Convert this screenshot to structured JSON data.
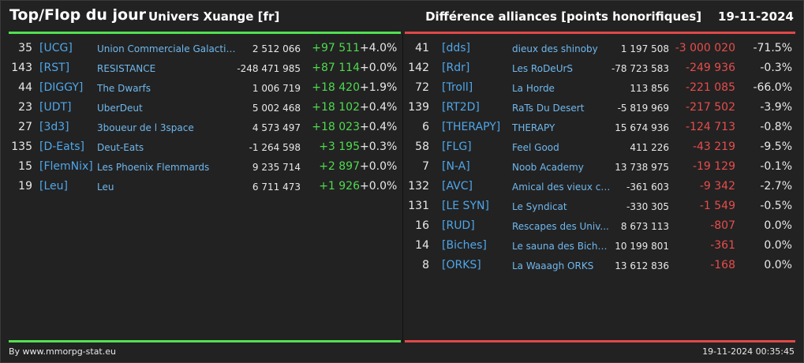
{
  "header": {
    "title": "Top/Flop du jour",
    "subtitle": "Univers Xuange [fr]",
    "right_title": "Différence alliances [points honorifiques]",
    "date": "19-11-2024"
  },
  "colors": {
    "positive": "#4edb4e",
    "negative": "#e84c4c",
    "link": "#4fa7ea"
  },
  "top": [
    {
      "rank": "35",
      "tag": "[UCG]",
      "name": "Union Commerciale Galactique",
      "points": "2 512 066",
      "diff": "+97 511",
      "pct": "+4.0%"
    },
    {
      "rank": "143",
      "tag": "[RST]",
      "name": "RESISTANCE",
      "points": "-248 471 985",
      "diff": "+87 114",
      "pct": "+0.0%"
    },
    {
      "rank": "44",
      "tag": "[DIGGY]",
      "name": "The Dwarfs",
      "points": "1 006 719",
      "diff": "+18 420",
      "pct": "+1.9%"
    },
    {
      "rank": "23",
      "tag": "[UDT]",
      "name": "UberDeut",
      "points": "5 002 468",
      "diff": "+18 102",
      "pct": "+0.4%"
    },
    {
      "rank": "27",
      "tag": "[3d3]",
      "name": "3boueur de l 3space",
      "points": "4 573 497",
      "diff": "+18 023",
      "pct": "+0.4%"
    },
    {
      "rank": "135",
      "tag": "[D-Eats]",
      "name": "Deut-Eats",
      "points": "-1 264 598",
      "diff": "+3 195",
      "pct": "+0.3%"
    },
    {
      "rank": "15",
      "tag": "[FlemNix]",
      "name": "Les Phoenix Flemmards",
      "points": "9 235 714",
      "diff": "+2 897",
      "pct": "+0.0%"
    },
    {
      "rank": "19",
      "tag": "[Leu]",
      "name": "Leu",
      "points": "6 711 473",
      "diff": "+1 926",
      "pct": "+0.0%"
    }
  ],
  "flop": [
    {
      "rank": "41",
      "tag": "[dds]",
      "name": "dieux des shinoby",
      "points": "1 197 508",
      "diff": "-3 000 020",
      "pct": "-71.5%"
    },
    {
      "rank": "142",
      "tag": "[Rdr]",
      "name": "Les RoDeUrS",
      "points": "-78 723 583",
      "diff": "-249 936",
      "pct": "-0.3%"
    },
    {
      "rank": "72",
      "tag": "[Troll]",
      "name": "La Horde",
      "points": "113 856",
      "diff": "-221 085",
      "pct": "-66.0%"
    },
    {
      "rank": "139",
      "tag": "[RT2D]",
      "name": "RaTs Du Desert",
      "points": "-5 819 969",
      "diff": "-217 502",
      "pct": "-3.9%"
    },
    {
      "rank": "6",
      "tag": "[THERAPY]",
      "name": "THERAPY",
      "points": "15 674 936",
      "diff": "-124 713",
      "pct": "-0.8%"
    },
    {
      "rank": "58",
      "tag": "[FLG]",
      "name": "Feel Good",
      "points": "411 226",
      "diff": "-43 219",
      "pct": "-9.5%"
    },
    {
      "rank": "7",
      "tag": "[N-A]",
      "name": "Noob Academy",
      "points": "13 738 975",
      "diff": "-19 129",
      "pct": "-0.1%"
    },
    {
      "rank": "132",
      "tag": "[AVC]",
      "name": "Amical des vieux co...",
      "points": "-361 603",
      "diff": "-9 342",
      "pct": "-2.7%"
    },
    {
      "rank": "131",
      "tag": "[LE SYN]",
      "name": "Le Syndicat",
      "points": "-330 305",
      "diff": "-1 549",
      "pct": "-0.5%"
    },
    {
      "rank": "16",
      "tag": "[RUD]",
      "name": "Rescapes des Univ...",
      "points": "8 673 113",
      "diff": "-807",
      "pct": "0.0%"
    },
    {
      "rank": "14",
      "tag": "[Biches]",
      "name": "Le sauna des Biche...",
      "points": "10 199 801",
      "diff": "-361",
      "pct": "0.0%"
    },
    {
      "rank": "8",
      "tag": "[ORKS]",
      "name": "La Waaagh ORKS",
      "points": "13 612 836",
      "diff": "-168",
      "pct": "0.0%"
    }
  ],
  "footer": {
    "credit": "By www.mmorpg-stat.eu",
    "timestamp": "19-11-2024 00:35:45"
  }
}
